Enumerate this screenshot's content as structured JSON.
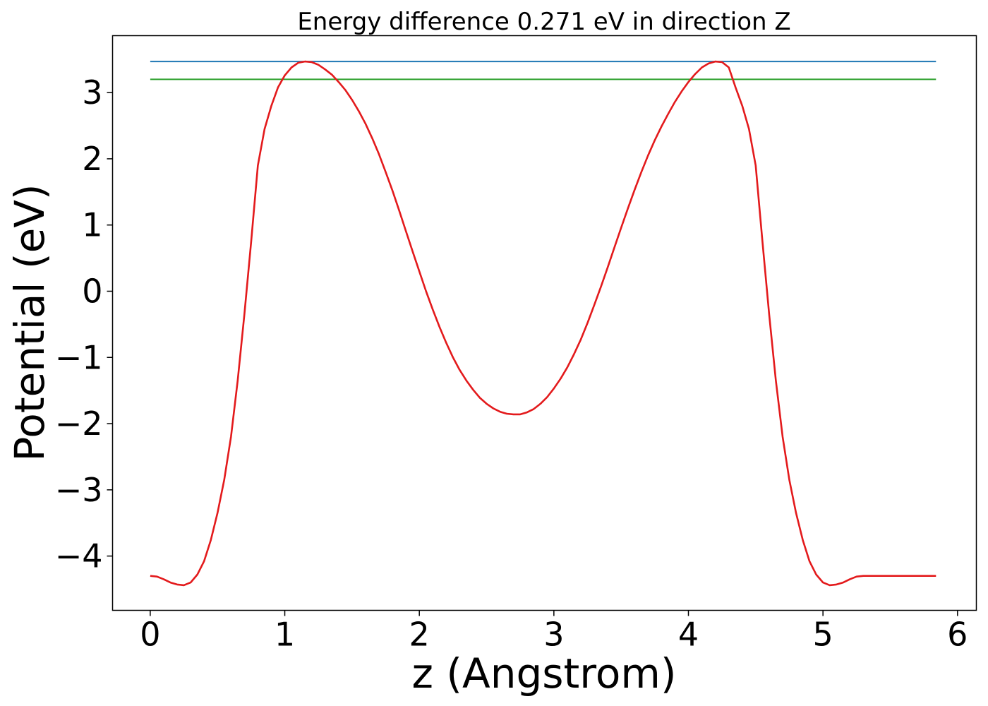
{
  "chart_data": {
    "type": "line",
    "title": "Energy difference 0.271 eV in direction Z",
    "xlabel": "z (Angstrom)",
    "ylabel": "Potential (eV)",
    "xlim": [
      -0.28,
      6.14
    ],
    "ylim": [
      -4.82,
      3.86
    ],
    "xticks": [
      0,
      1,
      2,
      3,
      4,
      5,
      6
    ],
    "xtick_labels": [
      "0",
      "1",
      "2",
      "3",
      "4",
      "5",
      "6"
    ],
    "yticks": [
      -4,
      -3,
      -2,
      -1,
      0,
      1,
      2,
      3
    ],
    "ytick_labels": [
      "−4",
      "−3",
      "−2",
      "−1",
      "0",
      "1",
      "2",
      "3"
    ],
    "grid": false,
    "legend": "none",
    "series": [
      {
        "kind": "hline",
        "color": "#1f77b4",
        "x": [
          0,
          5.84
        ],
        "y": [
          3.47,
          3.47
        ]
      },
      {
        "kind": "hline",
        "color": "#2ca02c",
        "x": [
          0,
          5.84
        ],
        "y": [
          3.2,
          3.2
        ]
      },
      {
        "kind": "curve",
        "color": "#e31a1c",
        "x": [
          0,
          0.05,
          0.1,
          0.15,
          0.2,
          0.25,
          0.3,
          0.35,
          0.4,
          0.45,
          0.5,
          0.55,
          0.6,
          0.65,
          0.7,
          0.75,
          0.8,
          0.85,
          0.9,
          0.95,
          1.0,
          1.05,
          1.1,
          1.15,
          1.2,
          1.25,
          1.3,
          1.35,
          1.4,
          1.45,
          1.5,
          1.55,
          1.6,
          1.65,
          1.7,
          1.75,
          1.8,
          1.85,
          1.9,
          1.95,
          2.0,
          2.05,
          2.1,
          2.15,
          2.2,
          2.25,
          2.3,
          2.35,
          2.4,
          2.45,
          2.5,
          2.55,
          2.6,
          2.65,
          2.7,
          2.75,
          2.8,
          2.85,
          2.9,
          2.95,
          3.0,
          3.05,
          3.1,
          3.15,
          3.2,
          3.25,
          3.3,
          3.35,
          3.4,
          3.45,
          3.5,
          3.55,
          3.6,
          3.65,
          3.7,
          3.75,
          3.8,
          3.85,
          3.9,
          3.95,
          4.0,
          4.05,
          4.1,
          4.15,
          4.2,
          4.25,
          4.3,
          4.35,
          4.4,
          4.45,
          4.5,
          4.55,
          4.6,
          4.65,
          4.7,
          4.75,
          4.8,
          4.85,
          4.9,
          4.95,
          5.0,
          5.05,
          5.1,
          5.15,
          5.2,
          5.25,
          5.3,
          5.35,
          5.4,
          5.45,
          5.5,
          5.55,
          5.6,
          5.65,
          5.7,
          5.75,
          5.8,
          5.84
        ],
        "y": [
          -4.3,
          -4.31,
          -4.35,
          -4.4,
          -4.43,
          -4.44,
          -4.4,
          -4.28,
          -4.08,
          -3.76,
          -3.35,
          -2.85,
          -2.2,
          -1.35,
          -0.35,
          0.75,
          1.9,
          2.45,
          2.8,
          3.08,
          3.26,
          3.38,
          3.45,
          3.47,
          3.46,
          3.42,
          3.35,
          3.27,
          3.16,
          3.04,
          2.89,
          2.72,
          2.53,
          2.31,
          2.07,
          1.8,
          1.52,
          1.22,
          0.91,
          0.6,
          0.3,
          0.0,
          -0.28,
          -0.54,
          -0.78,
          -1.0,
          -1.19,
          -1.35,
          -1.49,
          -1.61,
          -1.7,
          -1.77,
          -1.82,
          -1.85,
          -1.86,
          -1.86,
          -1.83,
          -1.78,
          -1.7,
          -1.6,
          -1.47,
          -1.32,
          -1.15,
          -0.95,
          -0.73,
          -0.48,
          -0.21,
          0.07,
          0.36,
          0.66,
          0.96,
          1.25,
          1.53,
          1.8,
          2.05,
          2.28,
          2.49,
          2.68,
          2.86,
          3.02,
          3.16,
          3.28,
          3.38,
          3.44,
          3.47,
          3.46,
          3.38,
          3.08,
          2.8,
          2.45,
          1.9,
          0.75,
          -0.35,
          -1.35,
          -2.2,
          -2.85,
          -3.35,
          -3.76,
          -4.08,
          -4.28,
          -4.4,
          -4.44,
          -4.43,
          -4.4,
          -4.35,
          -4.31,
          -4.3,
          -4.3,
          -4.3,
          -4.3,
          -4.3,
          -4.3,
          -4.3,
          -4.3,
          -4.3,
          -4.3,
          -4.3,
          -4.3
        ]
      }
    ]
  }
}
